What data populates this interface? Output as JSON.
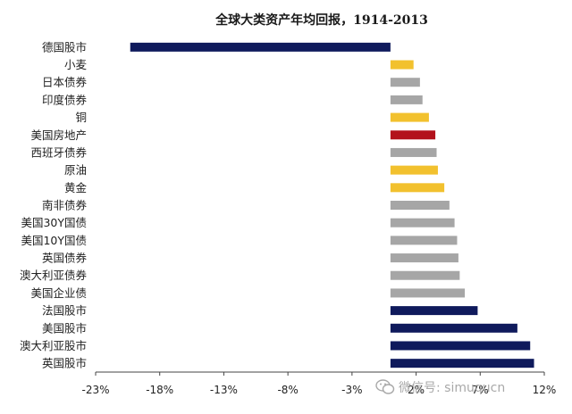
{
  "chart_data": {
    "type": "bar",
    "orientation": "horizontal",
    "title": "全球大类资产年均回报，1914-2013",
    "categories": [
      "德国股市",
      "小麦",
      "日本债券",
      "印度债券",
      "铜",
      "美国房地产",
      "西班牙债券",
      "原油",
      "黄金",
      "南非债券",
      "美国30Y国债",
      "美国10Y国债",
      "英国债券",
      "澳大利亚债券",
      "美国企业债",
      "法国股市",
      "美国股市",
      "澳大利亚股市",
      "英国股市"
    ],
    "values": [
      -20.3,
      1.8,
      2.3,
      2.5,
      3.0,
      3.5,
      3.6,
      3.7,
      4.2,
      4.6,
      5.0,
      5.2,
      5.3,
      5.4,
      5.8,
      6.8,
      9.9,
      10.9,
      11.2
    ],
    "colors": [
      "#0f1a5c",
      "#f2c12e",
      "#a6a6a6",
      "#a6a6a6",
      "#f2c12e",
      "#b3121c",
      "#a6a6a6",
      "#f2c12e",
      "#f2c12e",
      "#a6a6a6",
      "#a6a6a6",
      "#a6a6a6",
      "#a6a6a6",
      "#a6a6a6",
      "#a6a6a6",
      "#0f1a5c",
      "#0f1a5c",
      "#0f1a5c",
      "#0f1a5c"
    ],
    "xticks": [
      -23,
      -18,
      -13,
      -8,
      -3,
      2,
      7,
      12
    ],
    "xtick_labels": [
      "-23%",
      "-18%",
      "-13%",
      "-8%",
      "-3%",
      "2%",
      "7%",
      "12%"
    ],
    "xlim": [
      -23,
      12
    ],
    "xlabel": "",
    "ylabel": "",
    "grid": false,
    "legend": "none"
  },
  "watermark": {
    "text": "微信号: simuqucn",
    "icon": "wechat-icon"
  }
}
